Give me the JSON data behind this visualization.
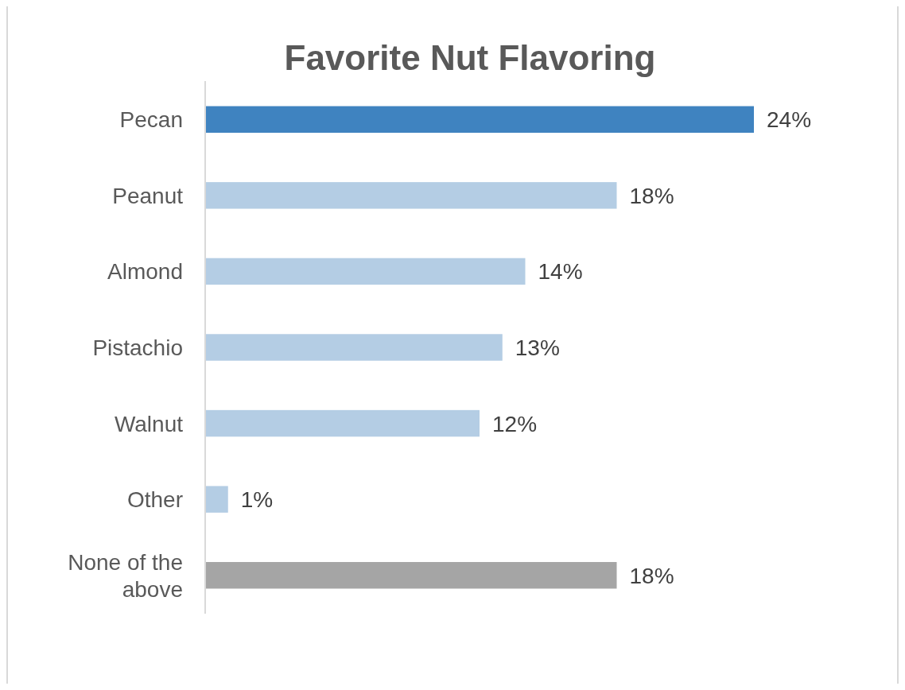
{
  "chart_data": {
    "type": "bar",
    "orientation": "horizontal",
    "title": "Favorite Nut Flavoring",
    "categories": [
      "Pecan",
      "Peanut",
      "Almond",
      "Pistachio",
      "Walnut",
      "Other",
      "None of the above"
    ],
    "values": [
      24,
      18,
      14,
      13,
      12,
      1,
      18
    ],
    "colors": [
      "#3f83c0",
      "#b4cde4",
      "#b4cde4",
      "#b4cde4",
      "#b4cde4",
      "#b4cde4",
      "#a5a5a5"
    ],
    "value_labels": [
      "24%",
      "18%",
      "14%",
      "13%",
      "12%",
      "1%",
      "18%"
    ]
  }
}
